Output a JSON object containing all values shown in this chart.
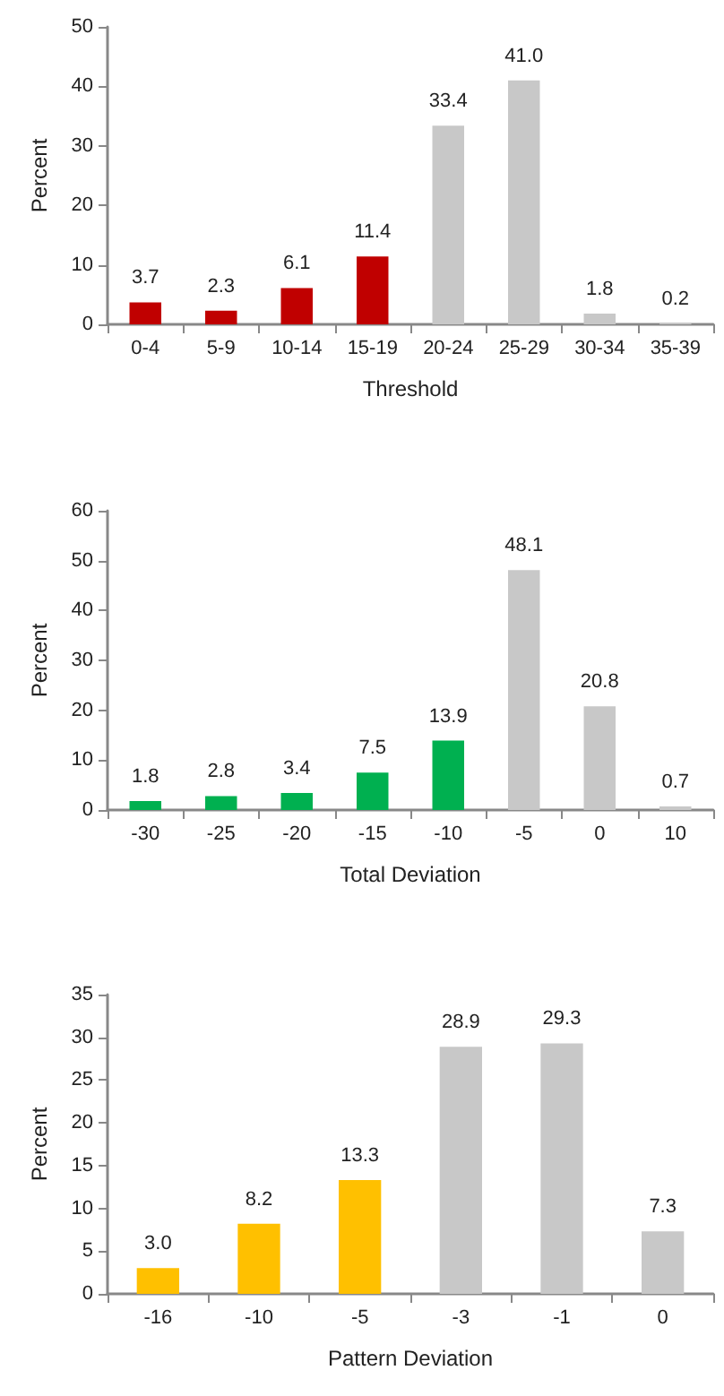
{
  "chart_data": [
    {
      "type": "bar",
      "xlabel": "Threshold",
      "ylabel": "Percent",
      "categories": [
        "0-4",
        "5-9",
        "10-14",
        "15-19",
        "20-24",
        "25-29",
        "30-34",
        "35-39"
      ],
      "values": [
        3.7,
        2.3,
        6.1,
        11.4,
        33.4,
        41.0,
        1.8,
        0.2
      ],
      "value_labels": [
        "3.7",
        "2.3",
        "6.1",
        "11.4",
        "33.4",
        "41.0",
        "1.8",
        "0.2"
      ],
      "colors": [
        "#c00000",
        "#c00000",
        "#c00000",
        "#c00000",
        "#c8c8c8",
        "#c8c8c8",
        "#c8c8c8",
        "#c8c8c8"
      ],
      "ylim": [
        0,
        50
      ],
      "yticks": [
        0,
        10,
        20,
        30,
        40,
        50
      ]
    },
    {
      "type": "bar",
      "xlabel": "Total Deviation",
      "ylabel": "Percent",
      "categories": [
        "-30",
        "-25",
        "-20",
        "-15",
        "-10",
        "-5",
        "0",
        "10"
      ],
      "values": [
        1.8,
        2.8,
        3.4,
        7.5,
        13.9,
        48.1,
        20.8,
        0.7
      ],
      "colors": [
        "#00b050",
        "#00b050",
        "#00b050",
        "#00b050",
        "#00b050",
        "#c8c8c8",
        "#c8c8c8",
        "#c8c8c8"
      ],
      "ylim": [
        0,
        60
      ],
      "yticks": [
        0,
        10,
        20,
        30,
        40,
        50,
        60
      ],
      "data_labels": true
    },
    {
      "type": "bar",
      "xlabel": "Pattern Deviation",
      "ylabel": "Percent",
      "categories": [
        "-16",
        "-10",
        "-5",
        "-3",
        "-1",
        "0"
      ],
      "values": [
        3.0,
        8.2,
        13.3,
        28.9,
        29.3,
        7.3
      ],
      "value_labels": [
        "3.0",
        "8.2",
        "13.3",
        "28.9",
        "29.3",
        "7.3"
      ],
      "colors": [
        "#ffc000",
        "#ffc000",
        "#ffc000",
        "#c8c8c8",
        "#c8c8c8",
        "#c8c8c8"
      ],
      "ylim": [
        0,
        35
      ],
      "yticks": [
        0,
        5,
        10,
        15,
        20,
        25,
        30,
        35
      ]
    }
  ]
}
